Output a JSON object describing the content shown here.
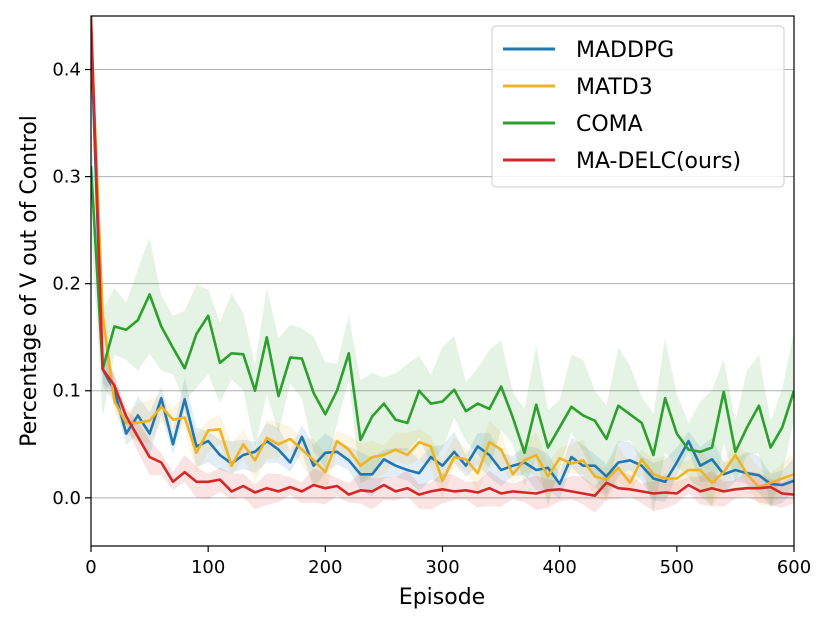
{
  "chart_data": {
    "type": "line",
    "xlabel": "Episode",
    "ylabel": "Percentage of V out of Control",
    "xlim": [
      0,
      600
    ],
    "ylim": [
      -0.045,
      0.45
    ],
    "xticks": [
      0,
      100,
      200,
      300,
      400,
      500,
      600
    ],
    "xtick_labels": [
      "0",
      "100",
      "200",
      "300",
      "400",
      "500",
      "600"
    ],
    "yticks": [
      0.0,
      0.1,
      0.2,
      0.3,
      0.4
    ],
    "ytick_labels": [
      "0.0",
      "0.1",
      "0.2",
      "0.3",
      "0.4"
    ],
    "grid": "horizontal",
    "legend": {
      "placement": "top-right"
    },
    "x": [
      0,
      10,
      20,
      30,
      40,
      50,
      60,
      70,
      80,
      90,
      100,
      110,
      120,
      130,
      140,
      150,
      160,
      170,
      180,
      190,
      200,
      210,
      220,
      230,
      240,
      250,
      260,
      270,
      280,
      290,
      300,
      310,
      320,
      330,
      340,
      350,
      360,
      370,
      380,
      390,
      400,
      410,
      420,
      430,
      440,
      450,
      460,
      470,
      480,
      490,
      500,
      510,
      520,
      530,
      540,
      550,
      560,
      570,
      580,
      590,
      600
    ],
    "series": [
      {
        "name": "MADDPG",
        "color": "#1f77b4",
        "values": [
          0.43,
          0.12,
          0.1,
          0.06,
          0.077,
          0.06,
          0.093,
          0.05,
          0.092,
          0.048,
          0.053,
          0.04,
          0.032,
          0.04,
          0.043,
          0.053,
          0.045,
          0.033,
          0.057,
          0.03,
          0.042,
          0.043,
          0.035,
          0.022,
          0.022,
          0.036,
          0.03,
          0.026,
          0.023,
          0.038,
          0.03,
          0.043,
          0.03,
          0.048,
          0.04,
          0.026,
          0.03,
          0.033,
          0.026,
          0.028,
          0.013,
          0.038,
          0.03,
          0.03,
          0.02,
          0.033,
          0.035,
          0.03,
          0.018,
          0.015,
          0.033,
          0.053,
          0.03,
          0.036,
          0.022,
          0.026,
          0.023,
          0.021,
          0.013,
          0.012,
          0.016
        ],
        "band": 0.015
      },
      {
        "name": "MATD3",
        "color": "#f0b323",
        "values": [
          0.44,
          0.17,
          0.09,
          0.07,
          0.07,
          0.072,
          0.085,
          0.073,
          0.075,
          0.042,
          0.063,
          0.064,
          0.03,
          0.05,
          0.035,
          0.056,
          0.05,
          0.055,
          0.045,
          0.035,
          0.024,
          0.053,
          0.045,
          0.03,
          0.038,
          0.04,
          0.045,
          0.04,
          0.052,
          0.048,
          0.016,
          0.038,
          0.036,
          0.023,
          0.052,
          0.045,
          0.022,
          0.035,
          0.04,
          0.02,
          0.037,
          0.032,
          0.035,
          0.02,
          0.017,
          0.028,
          0.014,
          0.036,
          0.022,
          0.018,
          0.018,
          0.026,
          0.026,
          0.014,
          0.024,
          0.04,
          0.022,
          0.01,
          0.014,
          0.018,
          0.022
        ],
        "band": 0.015
      },
      {
        "name": "COMA",
        "color": "#2ca02c",
        "values": [
          0.31,
          0.12,
          0.16,
          0.157,
          0.166,
          0.19,
          0.16,
          0.14,
          0.121,
          0.153,
          0.17,
          0.126,
          0.135,
          0.134,
          0.1,
          0.15,
          0.095,
          0.131,
          0.13,
          0.098,
          0.078,
          0.1,
          0.135,
          0.054,
          0.076,
          0.088,
          0.073,
          0.07,
          0.1,
          0.088,
          0.09,
          0.101,
          0.081,
          0.088,
          0.083,
          0.104,
          0.075,
          0.042,
          0.087,
          0.047,
          0.066,
          0.085,
          0.077,
          0.072,
          0.055,
          0.086,
          0.078,
          0.07,
          0.04,
          0.093,
          0.06,
          0.045,
          0.043,
          0.047,
          0.099,
          0.043,
          0.066,
          0.086,
          0.047,
          0.066,
          0.1
        ],
        "band": 0.04
      },
      {
        "name": "MA-DELC(ours)",
        "color": "#d62728",
        "values": [
          0.45,
          0.12,
          0.105,
          0.076,
          0.057,
          0.038,
          0.033,
          0.015,
          0.024,
          0.015,
          0.015,
          0.017,
          0.006,
          0.011,
          0.005,
          0.009,
          0.006,
          0.01,
          0.006,
          0.012,
          0.009,
          0.011,
          0.003,
          0.007,
          0.006,
          0.012,
          0.006,
          0.009,
          0.003,
          0.006,
          0.008,
          0.006,
          0.007,
          0.005,
          0.009,
          0.004,
          0.006,
          0.005,
          0.004,
          0.007,
          0.008,
          0.006,
          0.004,
          0.002,
          0.014,
          0.009,
          0.008,
          0.006,
          0.004,
          0.005,
          0.004,
          0.012,
          0.006,
          0.009,
          0.006,
          0.008,
          0.009,
          0.009,
          0.01,
          0.004,
          0.003
        ],
        "band": 0.012
      }
    ]
  }
}
